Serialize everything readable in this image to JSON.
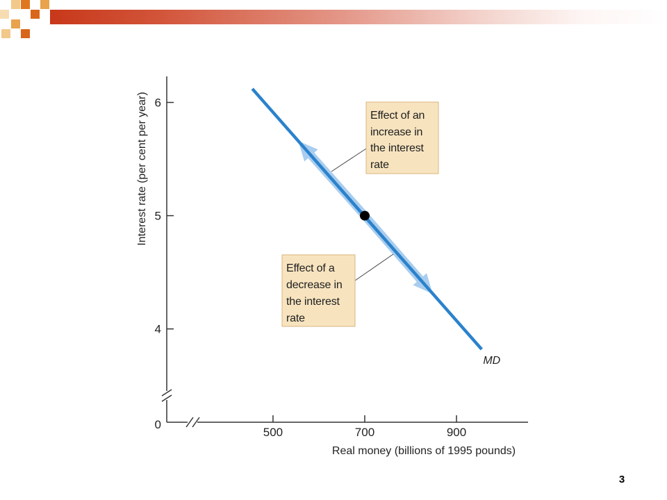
{
  "slide": {
    "page_number": "3"
  },
  "colors": {
    "curve": "#2b82cc",
    "arrow_band": "#a9cdee",
    "box_fill": "#f7e4bf",
    "box_border": "#d8b47e",
    "axis": "#333333",
    "point": "#000000",
    "header_bar": "#c8381a"
  },
  "chart_data": {
    "type": "line",
    "xlabel": "Real money (billions of 1995 pounds)",
    "ylabel": "Interest rate (per cent per year)",
    "x_ticks": [
      500,
      700,
      900
    ],
    "y_ticks": [
      4,
      5,
      6
    ],
    "origin_label": "0",
    "xlim": [
      335,
      1056
    ],
    "ylim": [
      3.36,
      6.23
    ],
    "axis_break": {
      "x": true,
      "y": true
    },
    "grid": false,
    "legend": "none",
    "series": [
      {
        "name": "MD",
        "x": [
          455,
          955
        ],
        "y": [
          6.12,
          3.82
        ]
      }
    ],
    "points": [
      {
        "x": 700,
        "y": 5
      }
    ],
    "annotations": [
      {
        "lines": [
          "Effect of an",
          "increase in",
          "the interest",
          "rate"
        ],
        "arrow": {
          "from": [
            700,
            5
          ],
          "to": [
            555,
            5.66
          ]
        }
      },
      {
        "lines": [
          "Effect of a",
          "decrease in",
          "the interest",
          "rate"
        ],
        "arrow": {
          "from": [
            700,
            5
          ],
          "to": [
            848,
            4.31
          ]
        }
      }
    ]
  }
}
